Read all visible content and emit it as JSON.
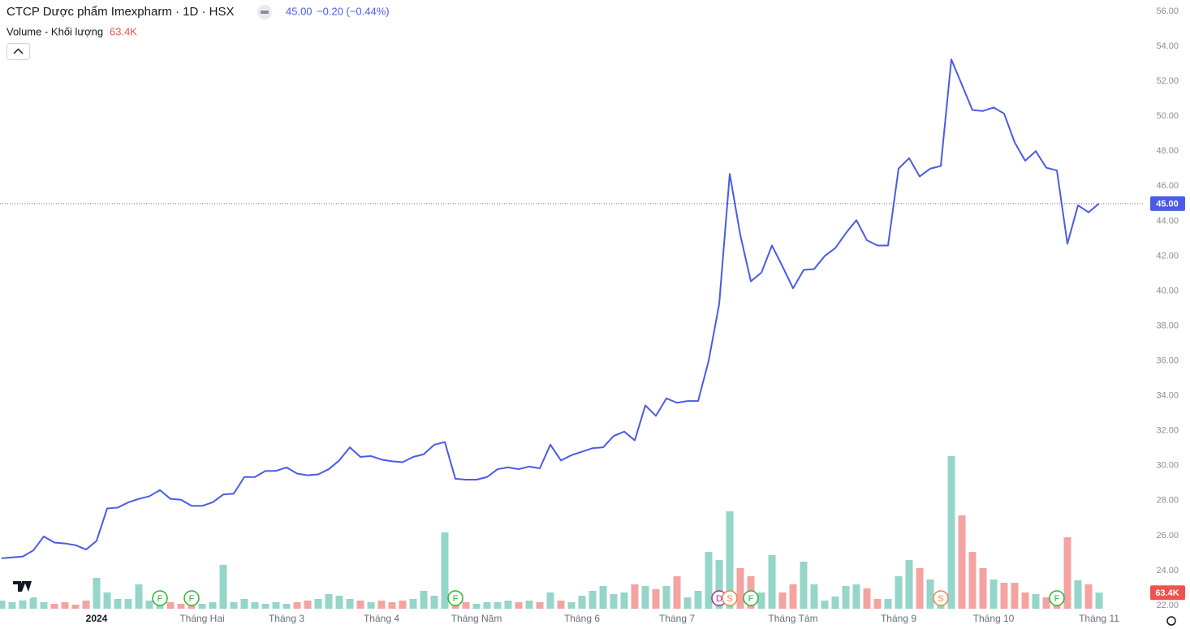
{
  "chart_data": {
    "type": "line",
    "title": "CTCP Dược phẩm Imexpharm · 1D · HSX",
    "last_price": {
      "value": 45,
      "label": "45.00"
    },
    "change": "−0.20 (−0.44%)",
    "volume_title": "Volume - Khối lượng",
    "volume_label": "63.4K",
    "categories": [
      null,
      null,
      null,
      null,
      null,
      null,
      null,
      null,
      null,
      "2024",
      null,
      null,
      null,
      null,
      null,
      null,
      null,
      null,
      null,
      "Tháng Hai",
      null,
      null,
      null,
      null,
      null,
      null,
      null,
      "Tháng 3",
      null,
      null,
      null,
      null,
      null,
      null,
      null,
      null,
      "Tháng 4",
      null,
      null,
      null,
      null,
      null,
      null,
      null,
      null,
      "Tháng Năm",
      null,
      null,
      null,
      null,
      null,
      null,
      null,
      null,
      null,
      "Tháng 6",
      null,
      null,
      null,
      null,
      null,
      null,
      null,
      null,
      "Tháng 7",
      null,
      null,
      null,
      null,
      null,
      null,
      null,
      null,
      null,
      null,
      "Tháng Tám",
      null,
      null,
      null,
      null,
      null,
      null,
      null,
      null,
      null,
      "Tháng 9",
      null,
      null,
      null,
      null,
      null,
      null,
      null,
      null,
      "Tháng 10",
      null,
      null,
      null,
      null,
      null,
      null,
      null,
      null,
      null,
      "Tháng 11"
    ],
    "series": [
      {
        "name": "Close",
        "color": "#4a5be6",
        "values": [
          24.7,
          24.75,
          24.8,
          25.15,
          25.95,
          25.6,
          25.55,
          25.45,
          25.2,
          25.7,
          27.55,
          27.6,
          27.9,
          28.1,
          28.25,
          28.6,
          28.1,
          28.05,
          27.7,
          27.7,
          27.9,
          28.35,
          28.4,
          29.35,
          29.35,
          29.7,
          29.7,
          29.9,
          29.55,
          29.45,
          29.5,
          29.8,
          30.3,
          31.05,
          30.5,
          30.55,
          30.35,
          30.25,
          30.2,
          30.5,
          30.65,
          31.2,
          31.35,
          29.25,
          29.2,
          29.2,
          29.35,
          29.8,
          29.9,
          29.8,
          29.95,
          29.85,
          31.2,
          30.3,
          30.6,
          30.8,
          31.0,
          31.05,
          31.7,
          31.95,
          31.45,
          33.45,
          32.85,
          33.85,
          33.6,
          33.7,
          33.7,
          36.0,
          39.25,
          46.7,
          43.2,
          40.55,
          41.05,
          42.6,
          41.4,
          40.15,
          41.2,
          41.25,
          42.0,
          42.45,
          43.3,
          44.05,
          42.9,
          42.6,
          42.6,
          47.0,
          47.6,
          46.55,
          47.0,
          47.15,
          53.25,
          51.8,
          50.35,
          50.3,
          50.5,
          50.15,
          48.5,
          47.45,
          48.0,
          47.05,
          46.9,
          42.7,
          44.9,
          44.5,
          45.0
        ]
      }
    ],
    "volume": {
      "up_color": "#95d5ca",
      "down_color": "#f4a3a1",
      "ylim": [
        0,
        600000
      ],
      "values": [
        32000,
        25600,
        38400,
        44800,
        25600,
        19200,
        25600,
        16000,
        32000,
        121600,
        64000,
        38400,
        38400,
        96000,
        32000,
        57600,
        25600,
        19200,
        25600,
        19200,
        25600,
        172800,
        25600,
        38400,
        25600,
        19200,
        25600,
        19200,
        25600,
        32000,
        38400,
        57600,
        51200,
        38400,
        32000,
        25600,
        32000,
        25600,
        32000,
        38400,
        70400,
        51200,
        300800,
        32000,
        25600,
        19200,
        25600,
        25600,
        32000,
        25600,
        32000,
        25600,
        64000,
        32000,
        25600,
        51200,
        70400,
        89600,
        57600,
        64000,
        96000,
        89600,
        76800,
        89600,
        128000,
        44800,
        70400,
        224000,
        192000,
        384000,
        160000,
        128000,
        64000,
        211200,
        64000,
        96000,
        185600,
        96000,
        32000,
        48000,
        89600,
        96000,
        80000,
        38400,
        38400,
        128000,
        192000,
        160000,
        115200,
        38400,
        601600,
        368000,
        224000,
        160000,
        115200,
        102400,
        102400,
        64000,
        57600,
        44800,
        48000,
        281600,
        112000,
        96000,
        63400
      ]
    },
    "events": [
      null,
      null,
      null,
      null,
      null,
      null,
      null,
      null,
      null,
      null,
      null,
      null,
      null,
      null,
      null,
      "F",
      null,
      null,
      "F",
      null,
      null,
      null,
      null,
      null,
      null,
      null,
      null,
      null,
      null,
      null,
      null,
      null,
      null,
      null,
      null,
      null,
      null,
      null,
      null,
      null,
      null,
      null,
      null,
      "F",
      null,
      null,
      null,
      null,
      null,
      null,
      null,
      null,
      null,
      null,
      null,
      null,
      null,
      null,
      null,
      null,
      null,
      null,
      null,
      null,
      null,
      null,
      null,
      null,
      "D",
      "S",
      null,
      "F",
      null,
      null,
      null,
      null,
      null,
      null,
      null,
      null,
      null,
      null,
      null,
      null,
      null,
      null,
      null,
      null,
      null,
      "S",
      null,
      null,
      null,
      null,
      null,
      null,
      null,
      null,
      null,
      null,
      "F",
      null,
      null,
      null,
      null
    ],
    "event_colors": {
      "F": "#2cb52c",
      "S": "#f0804a",
      "D": "#9c2b8f"
    },
    "ylim": [
      22,
      56
    ],
    "yticks": [
      {
        "value": 22,
        "label": "22.00"
      },
      {
        "value": 24,
        "label": "24.00"
      },
      {
        "value": 26,
        "label": "26.00"
      },
      {
        "value": 28,
        "label": "28.00"
      },
      {
        "value": 30,
        "label": "30.00"
      },
      {
        "value": 32,
        "label": "32.00"
      },
      {
        "value": 34,
        "label": "34.00"
      },
      {
        "value": 36,
        "label": "36.00"
      },
      {
        "value": 38,
        "label": "38.00"
      },
      {
        "value": 40,
        "label": "40.00"
      },
      {
        "value": 42,
        "label": "42.00"
      },
      {
        "value": 44,
        "label": "44.00"
      },
      {
        "value": 46,
        "label": "46.00"
      },
      {
        "value": 48,
        "label": "48.00"
      },
      {
        "value": 50,
        "label": "50.00"
      },
      {
        "value": 52,
        "label": "52.00"
      },
      {
        "value": 54,
        "label": "54.00"
      },
      {
        "value": 56,
        "label": "56.00"
      }
    ],
    "grid": false
  }
}
